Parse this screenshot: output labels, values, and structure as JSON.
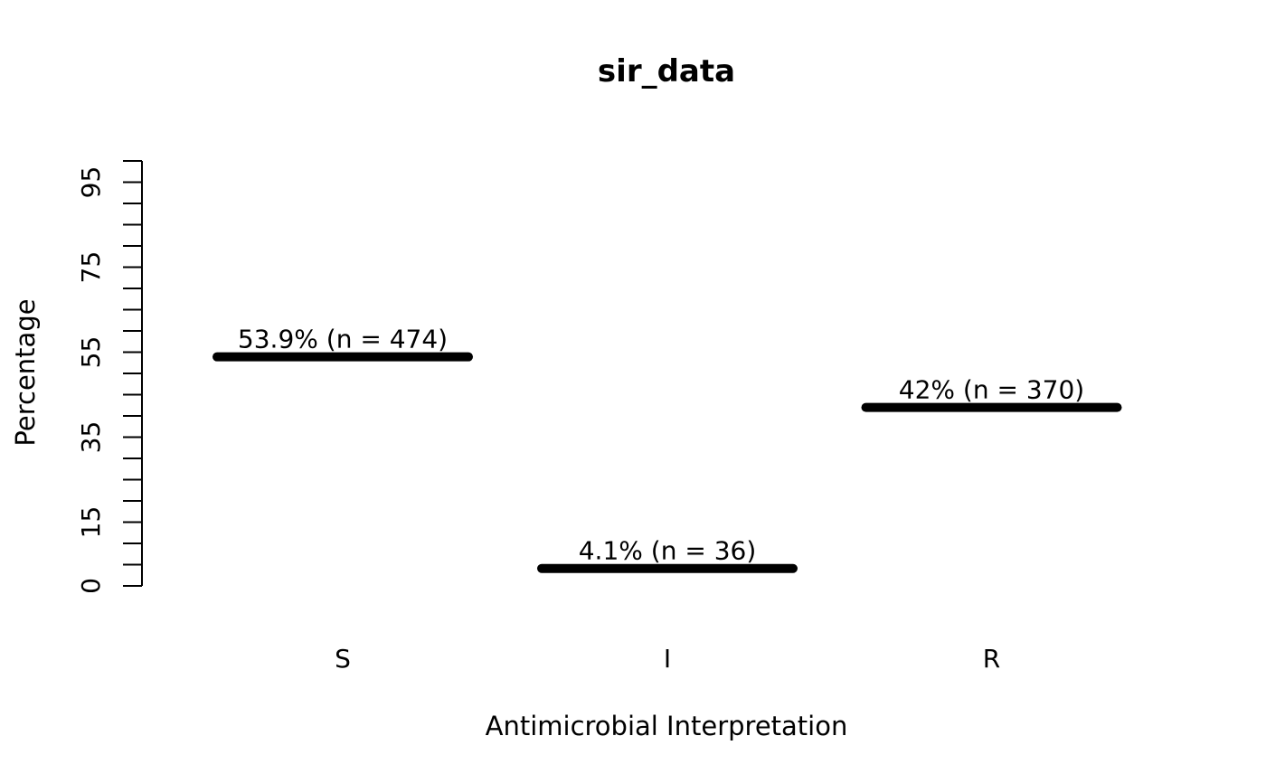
{
  "chart_data": {
    "type": "bar",
    "mark_style": "thick-horizontal-segment",
    "title": "sir_data",
    "xlabel": "Antimicrobial Interpretation",
    "ylabel": "Percentage",
    "categories": [
      "S",
      "I",
      "R"
    ],
    "values": [
      53.9,
      4.1,
      42
    ],
    "counts": [
      474,
      36,
      370
    ],
    "point_labels": [
      "53.9% (n = 474)",
      "4.1% (n = 36)",
      "42% (n = 370)"
    ],
    "ylim": [
      0,
      100
    ],
    "y_tick_step": 5,
    "y_labeled_ticks": [
      0,
      15,
      35,
      55,
      75,
      95
    ],
    "grid": false,
    "legend_position": "none",
    "x_axis_line": false,
    "colors": {
      "marks": "#000000",
      "text": "#000000",
      "axis": "#000000",
      "background": "#ffffff"
    }
  }
}
